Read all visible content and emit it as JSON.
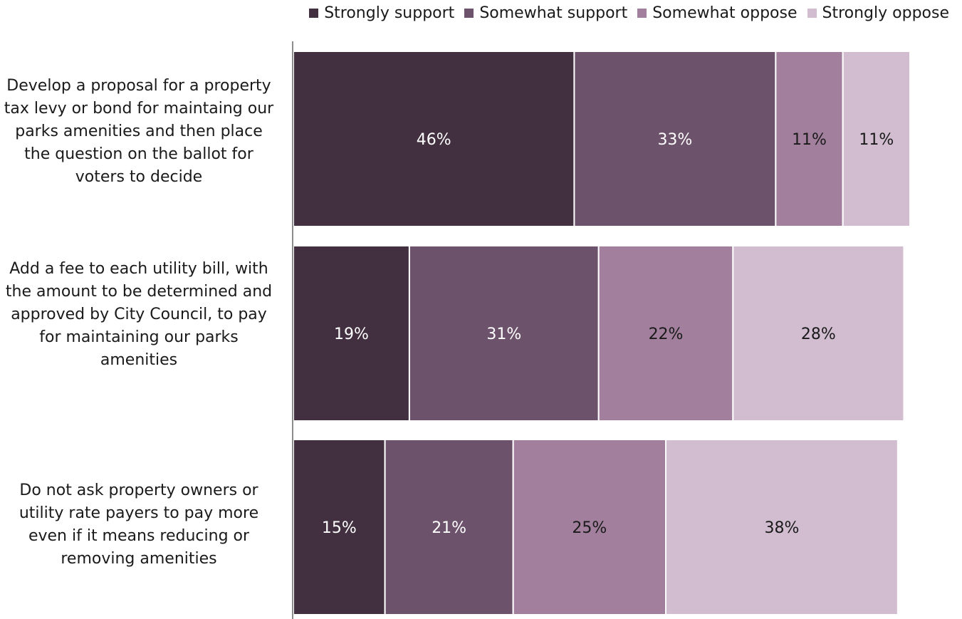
{
  "chart_data": {
    "type": "bar",
    "orientation": "horizontal",
    "stacked": true,
    "title": "",
    "xlabel": "",
    "ylabel": "",
    "xlim": [
      0,
      101
    ],
    "grid": false,
    "legend_position": "top-right",
    "categories": [
      "Develop a proposal for a property tax levy or bond for maintaing our parks amenities and then place the question on the ballot for voters to decide",
      "Add a fee to each utility bill, with the amount to be determined and approved by City Council, to pay for maintaining our parks amenities",
      "Do not ask property owners or utility rate payers to pay more even if it means reducing or removing amenities"
    ],
    "series": [
      {
        "name": "Strongly support",
        "color": "#422f3f",
        "label_color": "#ffffff",
        "values": [
          46,
          19,
          15
        ],
        "labels": [
          "46%",
          "19%",
          "15%"
        ]
      },
      {
        "name": "Somewhat support",
        "color": "#6d526c",
        "label_color": "#ffffff",
        "values": [
          33,
          31,
          21
        ],
        "labels": [
          "33%",
          "31%",
          "21%"
        ]
      },
      {
        "name": "Somewhat oppose",
        "color": "#a2809d",
        "label_color": "#1a1a1a",
        "values": [
          11,
          22,
          25
        ],
        "labels": [
          "11%",
          "22%",
          "25%"
        ]
      },
      {
        "name": "Strongly oppose",
        "color": "#d1bdcf",
        "label_color": "#1a1a1a",
        "values": [
          11,
          28,
          38
        ],
        "labels": [
          "11%",
          "28%",
          "38%"
        ]
      }
    ]
  }
}
